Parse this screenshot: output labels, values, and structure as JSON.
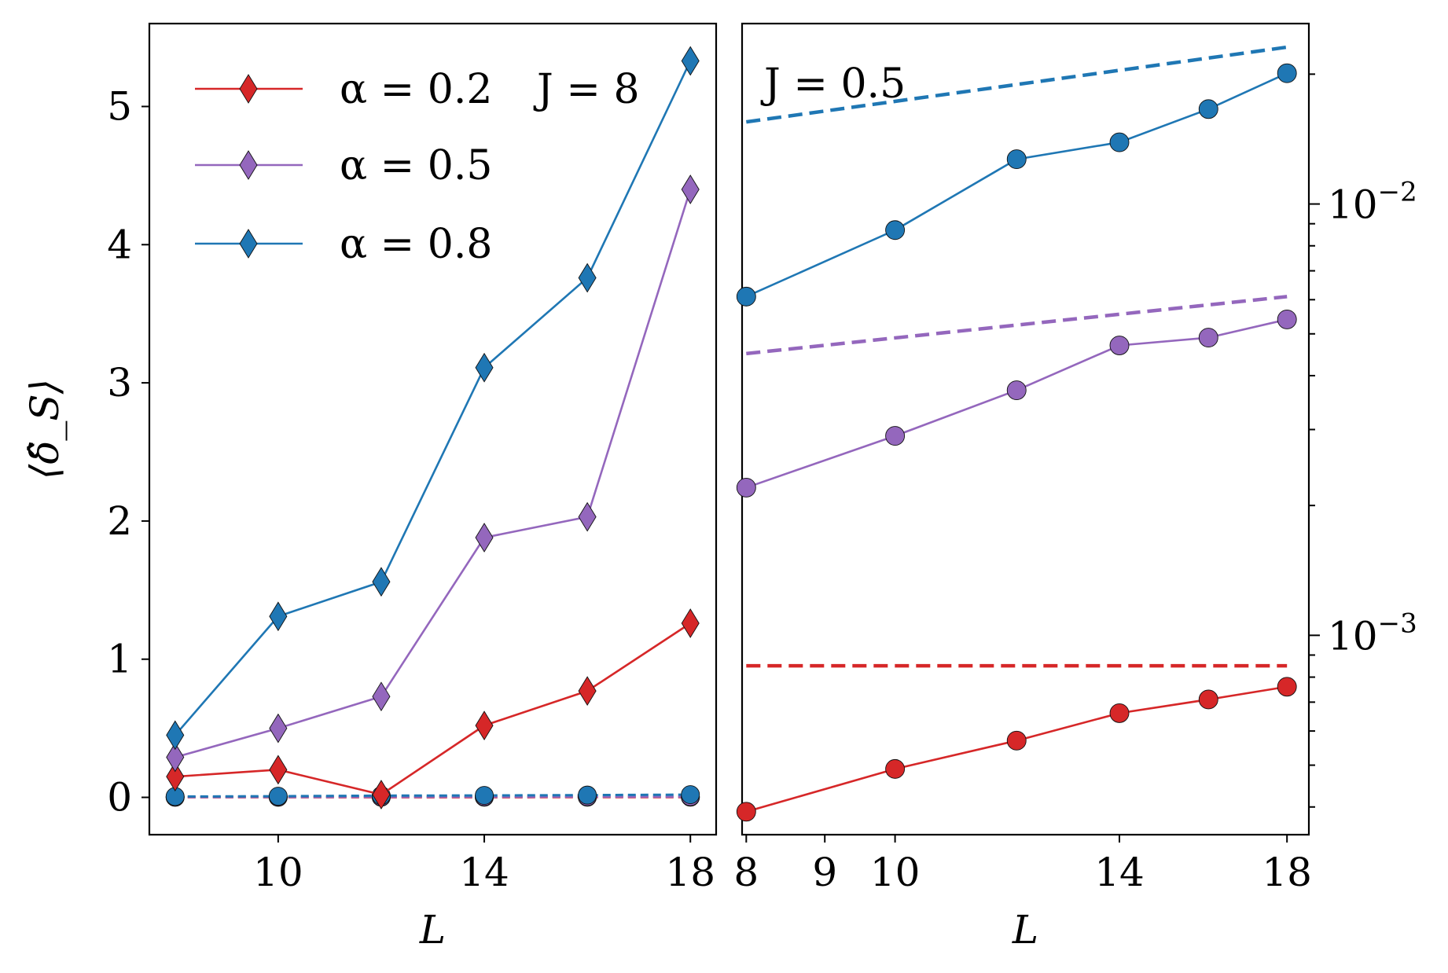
{
  "chart_data": [
    {
      "type": "line",
      "xlabel": "L",
      "ylabel": "⟨δ̂_S⟩",
      "xlim": [
        7.5,
        18.5
      ],
      "ylim": [
        -0.27,
        5.6
      ],
      "x_ticks": [
        10,
        14,
        18
      ],
      "y_ticks": [
        0,
        1,
        2,
        3,
        4,
        5
      ],
      "legend_position": "top-left",
      "annotation": "J = 8",
      "series": [
        {
          "name": "α = 0.2",
          "color": "#d62728",
          "marker": "diamond",
          "x": [
            8,
            10,
            12,
            14,
            16,
            18
          ],
          "values": [
            0.15,
            0.2,
            0.02,
            0.52,
            0.77,
            1.26
          ]
        },
        {
          "name": "α = 0.5",
          "color": "#9467bd",
          "marker": "diamond",
          "x": [
            8,
            10,
            12,
            14,
            16,
            18
          ],
          "values": [
            0.29,
            0.5,
            0.73,
            1.88,
            2.03,
            4.4
          ]
        },
        {
          "name": "α = 0.8",
          "color": "#1f77b4",
          "marker": "diamond",
          "x": [
            8,
            10,
            12,
            14,
            16,
            18
          ],
          "values": [
            0.45,
            1.31,
            1.56,
            3.11,
            3.76,
            5.33
          ]
        }
      ],
      "reference_series": [
        {
          "color": "#d62728",
          "marker": "circle",
          "style": "dashed",
          "x": [
            8,
            10,
            12,
            14,
            16,
            18
          ],
          "values": [
            0.0006,
            0.0008,
            0.001,
            0.0012,
            0.0013,
            0.0014
          ]
        },
        {
          "color": "#9467bd",
          "marker": "circle",
          "style": "dashed",
          "x": [
            8,
            10,
            12,
            14,
            16,
            18
          ],
          "values": [
            0.0022,
            0.003,
            0.0037,
            0.0047,
            0.0049,
            0.0054
          ]
        },
        {
          "color": "#1f77b4",
          "marker": "circle",
          "style": "dashed",
          "x": [
            8,
            10,
            12,
            14,
            16,
            18
          ],
          "values": [
            0.006,
            0.0085,
            0.0125,
            0.0138,
            0.0165,
            0.0198
          ]
        }
      ]
    },
    {
      "type": "line",
      "xlabel": "L",
      "x_scale": "log",
      "y_scale": "log",
      "y_axis_side": "right",
      "xlim": [
        7.95,
        18.6
      ],
      "ylim": [
        0.000345,
        0.0262
      ],
      "x_ticks": [
        8,
        9,
        10,
        14,
        18
      ],
      "y_major_ticks": [
        0.01,
        0.001
      ],
      "y_major_labels": [
        "10",
        "10"
      ],
      "y_major_exponents": [
        "−2",
        "−3"
      ],
      "y_minor_ticks": [
        0.0004,
        0.0005,
        0.0006,
        0.0007,
        0.0008,
        0.0009,
        0.002,
        0.003,
        0.004,
        0.005,
        0.006,
        0.007,
        0.008,
        0.009,
        0.02
      ],
      "annotation": "J = 0.5",
      "series": [
        {
          "color": "#d62728",
          "marker": "circle",
          "x": [
            8,
            10,
            12,
            14,
            16,
            18
          ],
          "values": [
            0.00039,
            0.00049,
            0.00057,
            0.00066,
            0.00071,
            0.00076
          ]
        },
        {
          "color": "#9467bd",
          "marker": "circle",
          "x": [
            8,
            10,
            12,
            14,
            16,
            18
          ],
          "values": [
            0.0022,
            0.0029,
            0.0037,
            0.0047,
            0.0049,
            0.0054
          ]
        },
        {
          "color": "#1f77b4",
          "marker": "circle",
          "x": [
            8,
            10,
            12,
            14,
            16,
            18
          ],
          "values": [
            0.0061,
            0.0087,
            0.0127,
            0.0139,
            0.0166,
            0.0201
          ]
        }
      ],
      "fit_lines": [
        {
          "color": "#d62728",
          "x": [
            8,
            18
          ],
          "values": [
            0.00085,
            0.00085
          ]
        },
        {
          "color": "#9467bd",
          "x": [
            8,
            18
          ],
          "values": [
            0.0045,
            0.0061
          ]
        },
        {
          "color": "#1f77b4",
          "x": [
            8,
            18
          ],
          "values": [
            0.0155,
            0.0231
          ]
        }
      ]
    }
  ]
}
